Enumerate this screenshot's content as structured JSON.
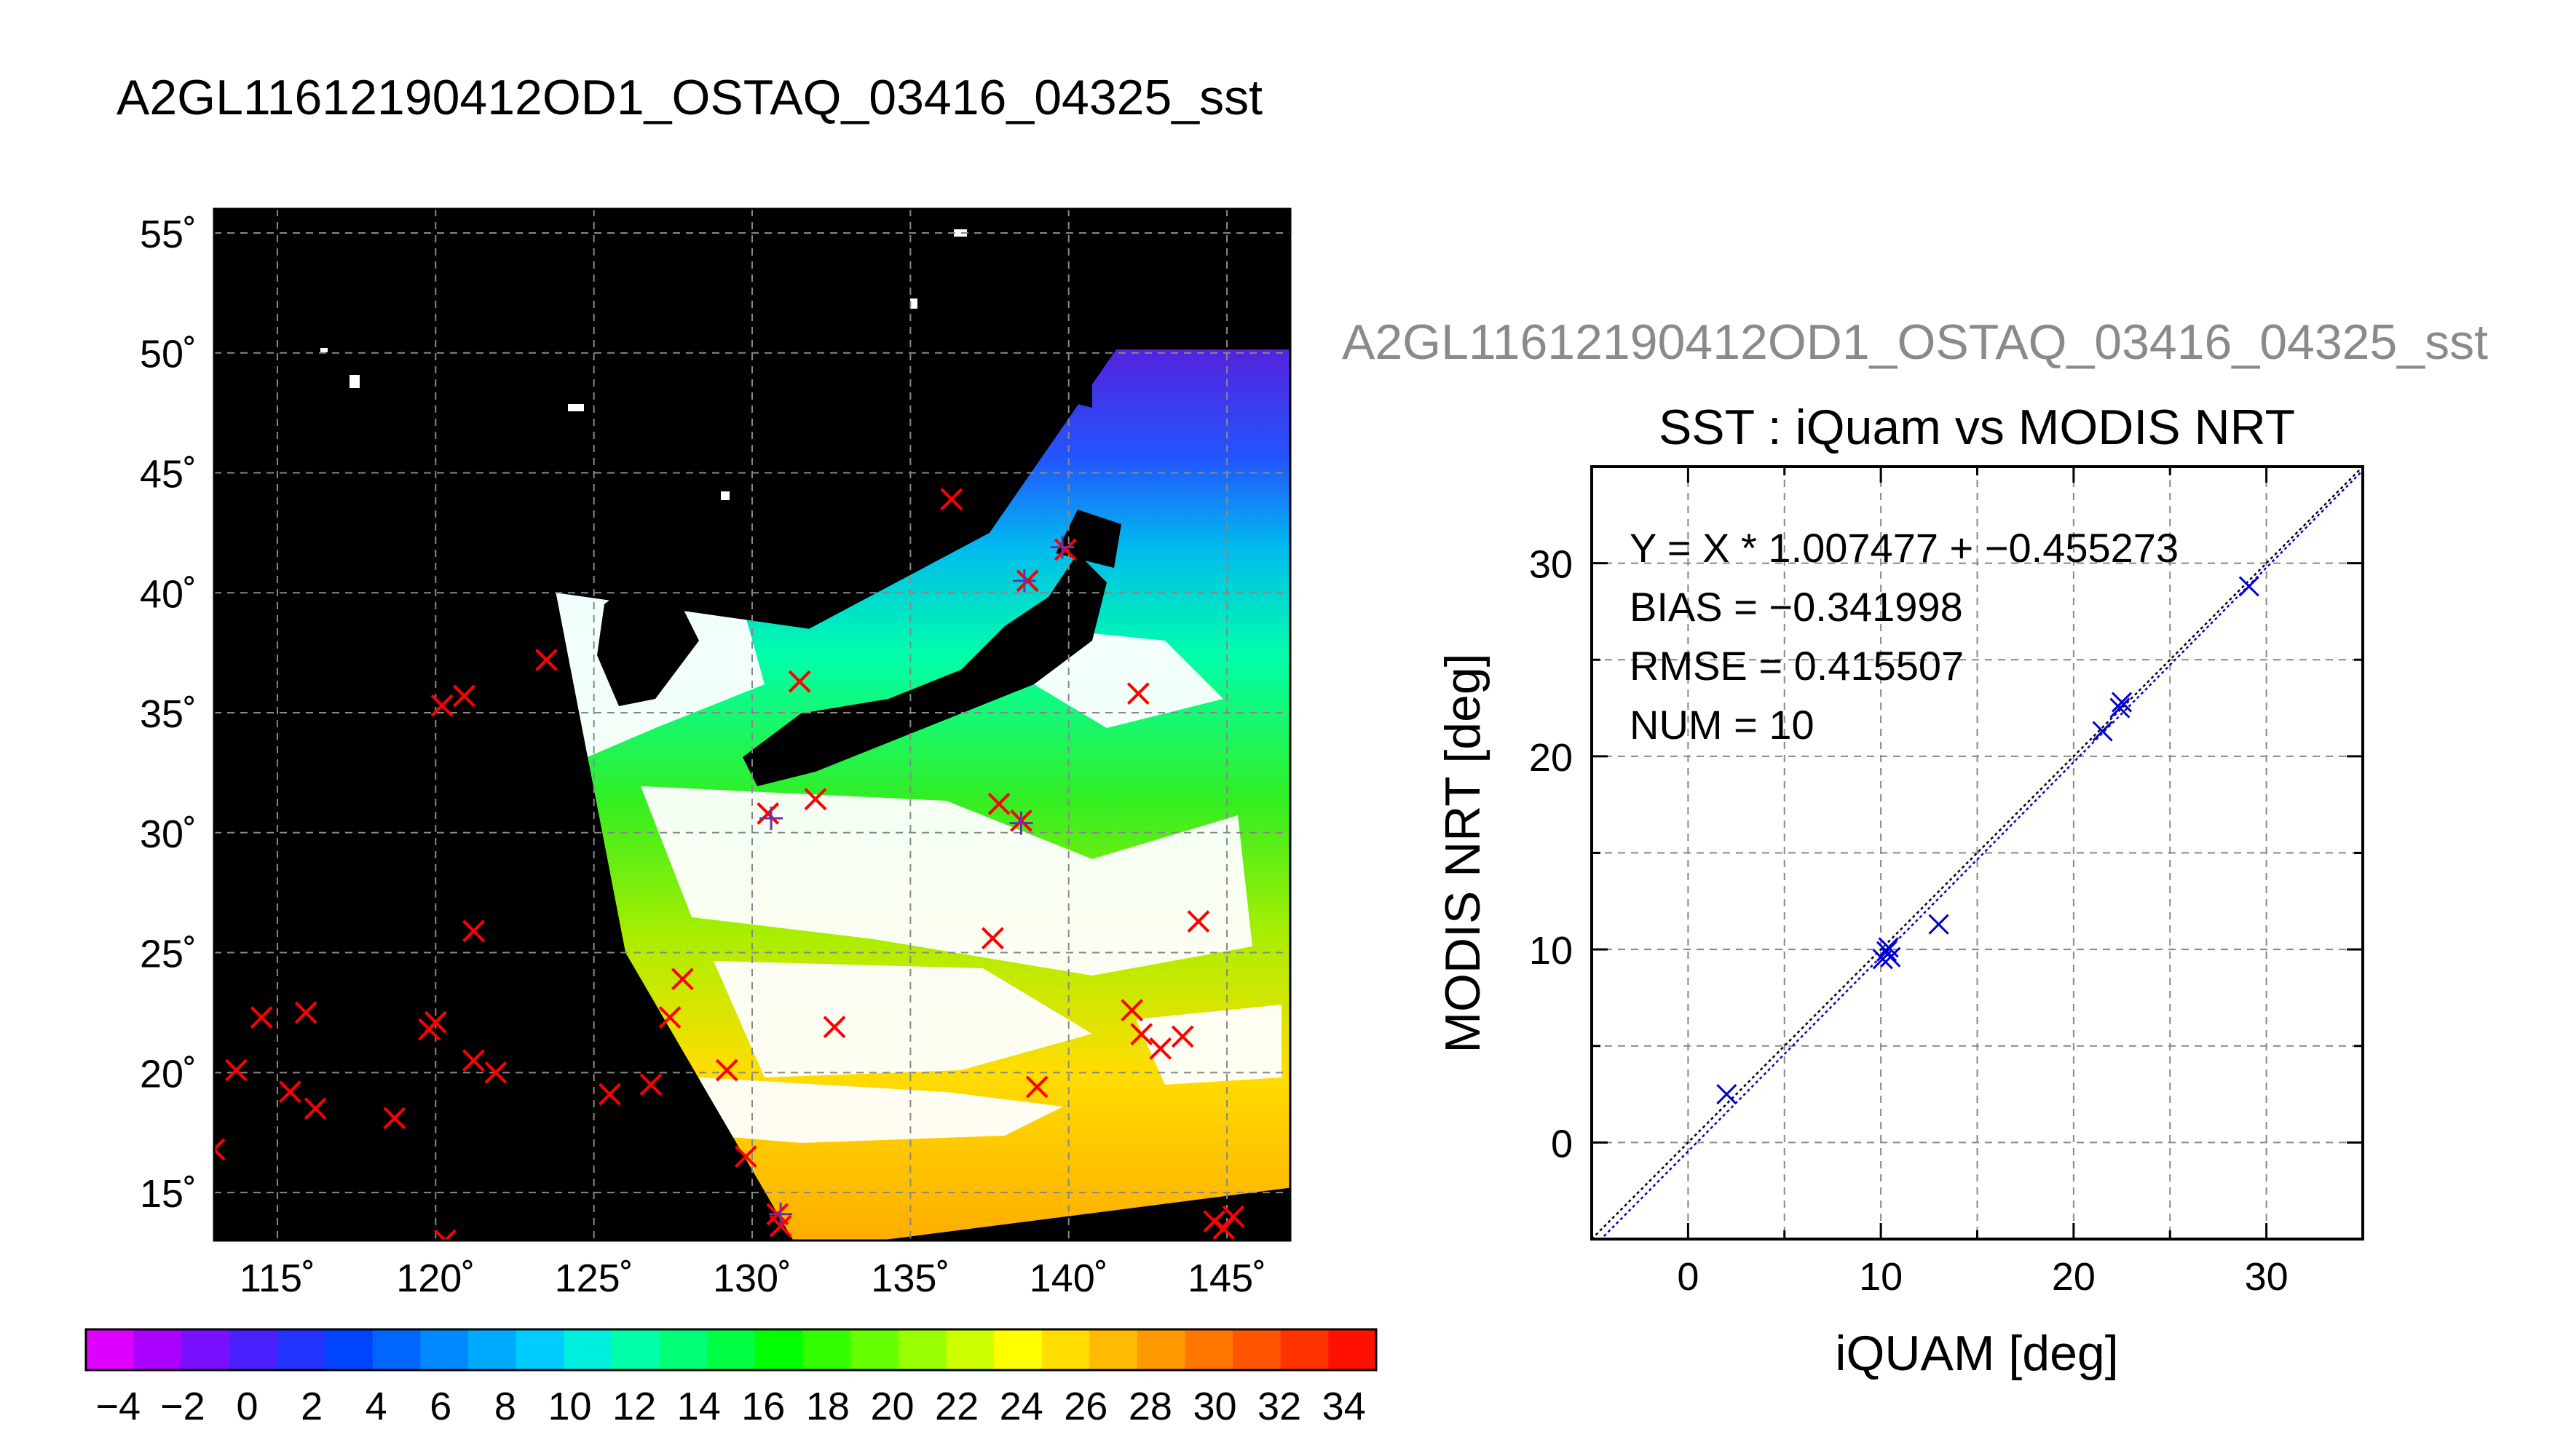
{
  "page_title": "A2GL11612190412OD1_OSTAQ_03416_04325_sst",
  "secondary_title": "A2GL11612190412OD1_OSTAQ_03416_04325_sst",
  "colors": {
    "map_background": "#000000",
    "cold": "#5522dd",
    "cool": "#00ccee",
    "mid": "#33ee33",
    "warm": "#ffcc00",
    "insitu_marker": "#ff0000",
    "scatter_marker": "#0000cc"
  },
  "chart_data": [
    {
      "type": "heatmap",
      "title": "",
      "lat_ticks": [
        "55˚",
        "50˚",
        "45˚",
        "40˚",
        "35˚",
        "30˚",
        "25˚",
        "20˚",
        "15˚"
      ],
      "lon_ticks": [
        "115˚",
        "120˚",
        "125˚",
        "130˚",
        "135˚",
        "140˚",
        "145˚"
      ],
      "xlim": [
        113,
        147
      ],
      "ylim": [
        13,
        56
      ],
      "grid": true,
      "colorbar": {
        "ticks": [
          "−4",
          "−2",
          "0",
          "2",
          "4",
          "6",
          "8",
          "10",
          "12",
          "14",
          "16",
          "18",
          "20",
          "22",
          "24",
          "26",
          "28",
          "30",
          "32",
          "34"
        ],
        "range": [
          -5,
          35
        ],
        "colors": [
          "#dd00ff",
          "#aa00ff",
          "#7a10ff",
          "#4a20ff",
          "#2233ff",
          "#0044ff",
          "#0066ff",
          "#0088ff",
          "#00aaff",
          "#00ccff",
          "#00eedd",
          "#00ffaa",
          "#00ff77",
          "#00ff44",
          "#00ff00",
          "#33ff00",
          "#66ff00",
          "#99ff00",
          "#ccff00",
          "#ffff00",
          "#ffdd00",
          "#ffbb00",
          "#ff9900",
          "#ff7700",
          "#ff5500",
          "#ff3300",
          "#ff1100"
        ]
      },
      "insitu_points": [
        {
          "lon": 123.5,
          "lat": 37.2
        },
        {
          "lon": 120.2,
          "lat": 35.3
        },
        {
          "lon": 120.9,
          "lat": 35.7
        },
        {
          "lon": 131.5,
          "lat": 36.3
        },
        {
          "lon": 132.0,
          "lat": 31.4
        },
        {
          "lon": 130.5,
          "lat": 30.8
        },
        {
          "lon": 137.8,
          "lat": 31.2
        },
        {
          "lon": 138.5,
          "lat": 30.5
        },
        {
          "lon": 136.3,
          "lat": 43.9
        },
        {
          "lon": 138.7,
          "lat": 40.5
        },
        {
          "lon": 139.9,
          "lat": 41.8
        },
        {
          "lon": 142.2,
          "lat": 35.8
        },
        {
          "lon": 121.2,
          "lat": 25.9
        },
        {
          "lon": 127.8,
          "lat": 23.9
        },
        {
          "lon": 127.4,
          "lat": 22.3
        },
        {
          "lon": 132.6,
          "lat": 21.9
        },
        {
          "lon": 137.6,
          "lat": 25.6
        },
        {
          "lon": 144.1,
          "lat": 26.3
        },
        {
          "lon": 142.0,
          "lat": 22.6
        },
        {
          "lon": 142.3,
          "lat": 21.6
        },
        {
          "lon": 142.9,
          "lat": 21.0
        },
        {
          "lon": 143.6,
          "lat": 21.5
        },
        {
          "lon": 114.5,
          "lat": 22.3
        },
        {
          "lon": 115.9,
          "lat": 22.5
        },
        {
          "lon": 113.7,
          "lat": 20.1
        },
        {
          "lon": 115.4,
          "lat": 19.2
        },
        {
          "lon": 116.2,
          "lat": 18.5
        },
        {
          "lon": 118.7,
          "lat": 18.1
        },
        {
          "lon": 119.8,
          "lat": 21.8
        },
        {
          "lon": 120.0,
          "lat": 22.1
        },
        {
          "lon": 121.2,
          "lat": 20.5
        },
        {
          "lon": 121.9,
          "lat": 20.0
        },
        {
          "lon": 125.5,
          "lat": 19.1
        },
        {
          "lon": 126.8,
          "lat": 19.5
        },
        {
          "lon": 129.2,
          "lat": 20.1
        },
        {
          "lon": 129.8,
          "lat": 16.5
        },
        {
          "lon": 130.8,
          "lat": 14.1
        },
        {
          "lon": 130.9,
          "lat": 13.6
        },
        {
          "lon": 139.0,
          "lat": 19.4
        },
        {
          "lon": 144.6,
          "lat": 13.8
        },
        {
          "lon": 144.9,
          "lat": 13.5
        },
        {
          "lon": 145.2,
          "lat": 14.0
        },
        {
          "lon": 120.3,
          "lat": 13.0
        },
        {
          "lon": 113.0,
          "lat": 16.8
        }
      ],
      "matched_points": [
        {
          "lon": 130.6,
          "lat": 30.6
        },
        {
          "lon": 138.5,
          "lat": 30.4
        },
        {
          "lon": 138.6,
          "lat": 40.5
        },
        {
          "lon": 139.8,
          "lat": 41.9
        },
        {
          "lon": 130.9,
          "lat": 14.1
        }
      ]
    },
    {
      "type": "scatter",
      "title": "SST : iQuam vs MODIS NRT",
      "xlabel": "iQUAM [deg]",
      "ylabel": "MODIS NRT [deg]",
      "xlim": [
        -5,
        35
      ],
      "ylim": [
        -5,
        35
      ],
      "x_ticks": [
        "0",
        "10",
        "20",
        "30"
      ],
      "y_ticks": [
        "0",
        "10",
        "20",
        "30"
      ],
      "grid": true,
      "annotations": [
        "Y = X * 1.007477 + −0.455273",
        "BIAS = −0.341998",
        "RMSE = 0.415507",
        "NUM = 10"
      ],
      "fit": {
        "slope": 1.007477,
        "intercept": -0.455273
      },
      "points": [
        {
          "x": 2.0,
          "y": 2.5
        },
        {
          "x": 10.1,
          "y": 9.5
        },
        {
          "x": 10.3,
          "y": 9.9
        },
        {
          "x": 10.5,
          "y": 9.6
        },
        {
          "x": 10.4,
          "y": 10.1
        },
        {
          "x": 13.0,
          "y": 11.3
        },
        {
          "x": 21.5,
          "y": 21.3
        },
        {
          "x": 22.4,
          "y": 22.5
        },
        {
          "x": 22.5,
          "y": 22.8
        },
        {
          "x": 29.1,
          "y": 28.8
        }
      ]
    }
  ]
}
